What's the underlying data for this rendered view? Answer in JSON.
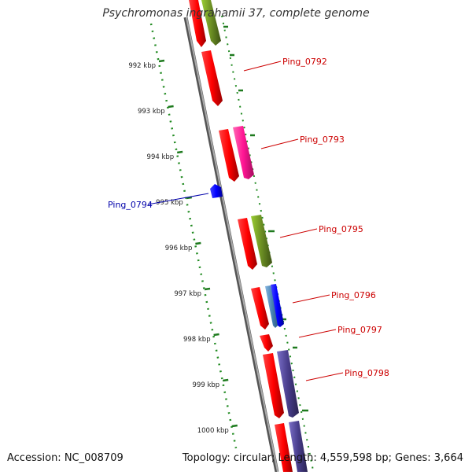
{
  "map": {
    "title": "Psychromonas ingrahamii 37, complete genome",
    "accession": "Accession: NC_008709",
    "summary": "Topology: circular; Length: 4,559,598 bp; Genes: 3,664"
  },
  "ruler": {
    "unit": "kbp",
    "ticks": [
      {
        "kbp": 992,
        "label": "992 kbp"
      },
      {
        "kbp": 993,
        "label": "993 kbp"
      },
      {
        "kbp": 994,
        "label": "994 kbp"
      },
      {
        "kbp": 995,
        "label": "995 kbp"
      },
      {
        "kbp": 996,
        "label": "996 kbp"
      },
      {
        "kbp": 997,
        "label": "997 kbp"
      },
      {
        "kbp": 998,
        "label": "998 kbp"
      },
      {
        "kbp": 999,
        "label": "999 kbp"
      },
      {
        "kbp": 1000,
        "label": "1000 kbp"
      }
    ]
  },
  "genes": [
    {
      "id": "Ping_0792",
      "label": "Ping_0792",
      "color": "#cc0000"
    },
    {
      "id": "Ping_0793",
      "label": "Ping_0793",
      "color": "#cc0000"
    },
    {
      "id": "Ping_0794",
      "label": "Ping_0794",
      "color": "#0000aa"
    },
    {
      "id": "Ping_0795",
      "label": "Ping_0795",
      "color": "#cc0000"
    },
    {
      "id": "Ping_0796",
      "label": "Ping_0796",
      "color": "#cc0000"
    },
    {
      "id": "Ping_0797",
      "label": "Ping_0797",
      "color": "#cc0000"
    },
    {
      "id": "Ping_0798",
      "label": "Ping_0798",
      "color": "#cc0000"
    }
  ],
  "colors": {
    "cds": "#ff0000",
    "cog_green": "#6b8e23",
    "cog_pink": "#ff1493",
    "cog_blue": "#0000ff",
    "cog_lightblue": "#4682b4",
    "cog_purple": "#483d8b",
    "backbone": "#888888",
    "ruler": "#228b22",
    "forward_label": "#cc0000",
    "reverse_label": "#0000aa"
  }
}
